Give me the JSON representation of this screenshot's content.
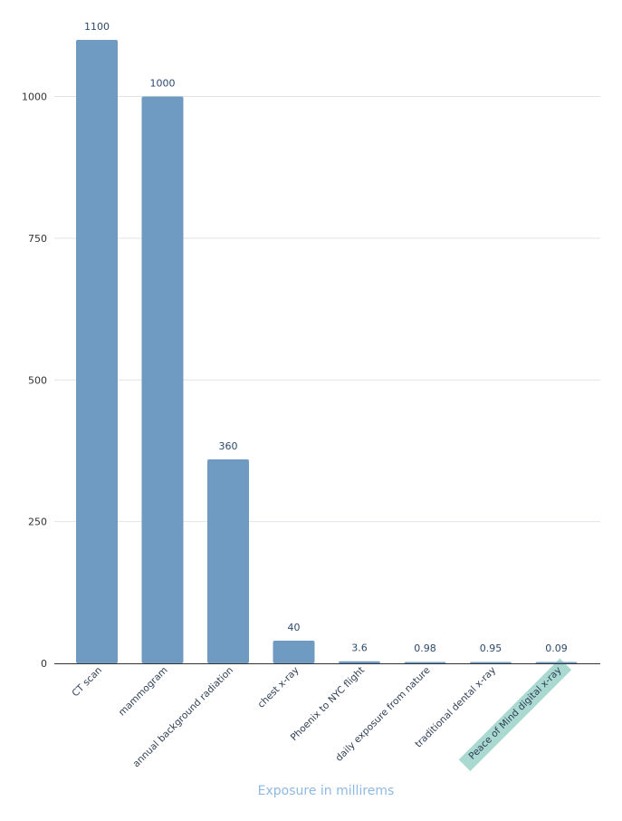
{
  "chart_data": {
    "type": "bar",
    "title": "",
    "xlabel": "Exposure in millirems",
    "ylabel": "",
    "ylim": [
      0,
      1100
    ],
    "yticks": [
      0,
      250,
      500,
      750,
      1000
    ],
    "grid": true,
    "categories": [
      "CT scan",
      "mammogram",
      "annual background radiation",
      "chest x-ray",
      "Phoenix to NYC flight",
      "daily exposure from nature",
      "traditional dental x-ray",
      "Peace of Mind digital x-ray"
    ],
    "values": [
      1100,
      1000,
      360,
      40,
      3.6,
      0.98,
      0.95,
      0.09
    ],
    "value_labels": [
      "1100",
      "1000",
      "360",
      "40",
      "3.6",
      "0.98",
      "0.95",
      "0.09"
    ],
    "highlighted_category": "Peace of Mind digital x-ray",
    "colors": {
      "bar": "#6f9bc2",
      "highlight": "#a9d9d0",
      "grid": "#dfe3e8",
      "xlabel": "#8fb9e2"
    }
  }
}
